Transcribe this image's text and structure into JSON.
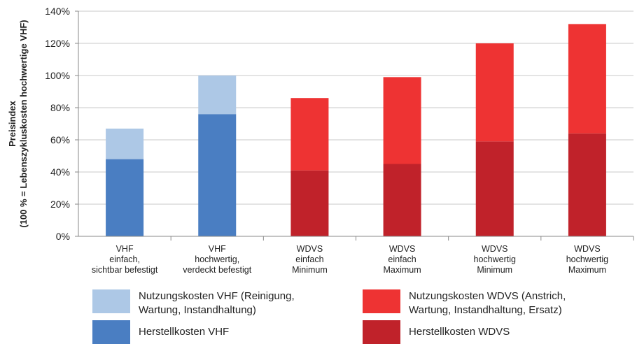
{
  "chart_data": {
    "type": "bar",
    "stacked": true,
    "ylabel": "Preisindex\n(100 % = Lebenszykluskosten hochwertige VHF)",
    "ylim": [
      0,
      140
    ],
    "yticks": [
      "0%",
      "20%",
      "40%",
      "60%",
      "80%",
      "100%",
      "120%",
      "140%"
    ],
    "grid": true,
    "categories": [
      "VHF\neinfach,\nsichtbar befestigt",
      "VHF\nhochwertig,\nverdeckt befestigt",
      "WDVS\neinfach\nMinimum",
      "WDVS\neinfach\nMaximum",
      "WDVS\nhochwertig\nMinimum",
      "WDVS\nhochwertig\nMaximum"
    ],
    "series": [
      {
        "key": "herst",
        "values": [
          48,
          76,
          41,
          45,
          59,
          64
        ]
      },
      {
        "key": "nutz",
        "values": [
          19,
          24,
          45,
          54,
          61,
          68
        ]
      }
    ],
    "colors": {
      "vhf_herst": "#4a7ec2",
      "vhf_nutz": "#adc8e6",
      "wdvs_herst": "#c0222a",
      "wdvs_nutz": "#ee3333"
    },
    "legend_position": "bottom"
  },
  "legend": [
    {
      "label": "Nutzungskosten VHF (Reinigung,\nWartung, Instandhaltung)",
      "color": "#adc8e6"
    },
    {
      "label": "Nutzungskosten WDVS (Anstrich,\nWartung, Instandhaltung, Ersatz)",
      "color": "#ee3333"
    },
    {
      "label": "Herstellkosten VHF",
      "color": "#4a7ec2"
    },
    {
      "label": "Herstellkosten WDVS",
      "color": "#c0222a"
    }
  ]
}
